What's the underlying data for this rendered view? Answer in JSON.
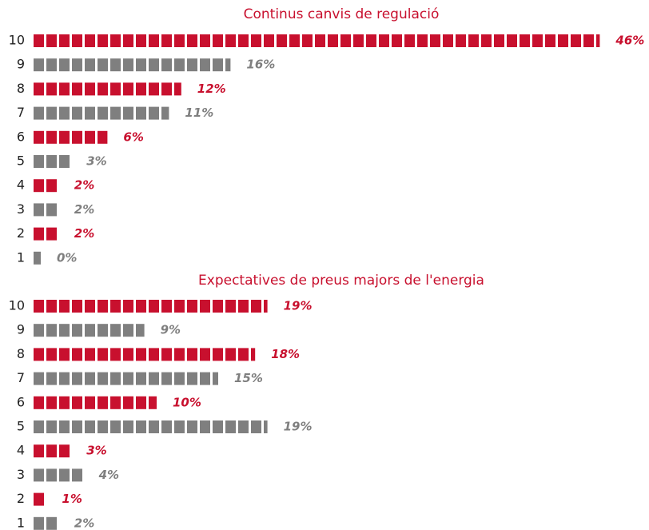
{
  "chart_data": [
    {
      "type": "bar",
      "title": "Continus canvis de regulació",
      "categories": [
        "10",
        "9",
        "8",
        "7",
        "6",
        "5",
        "4",
        "3",
        "2",
        "1"
      ],
      "values": [
        46,
        16,
        12,
        11,
        6,
        3,
        2,
        2,
        2,
        0
      ],
      "value_labels": [
        "46%",
        "16%",
        "12%",
        "11%",
        "6%",
        "3%",
        "2%",
        "2%",
        "2%",
        "0%"
      ],
      "colors": [
        "#c8102e",
        "#7f7f7f",
        "#c8102e",
        "#7f7f7f",
        "#c8102e",
        "#7f7f7f",
        "#c8102e",
        "#7f7f7f",
        "#c8102e",
        "#7f7f7f"
      ]
    },
    {
      "type": "bar",
      "title": "Expectatives de preus majors de l'energia",
      "categories": [
        "10",
        "9",
        "8",
        "7",
        "6",
        "5",
        "4",
        "3",
        "2",
        "1"
      ],
      "values": [
        19,
        9,
        18,
        15,
        10,
        19,
        3,
        4,
        1,
        2
      ],
      "value_labels": [
        "19%",
        "9%",
        "18%",
        "15%",
        "10%",
        "19%",
        "3%",
        "4%",
        "1%",
        "2%"
      ],
      "colors": [
        "#c8102e",
        "#7f7f7f",
        "#c8102e",
        "#7f7f7f",
        "#c8102e",
        "#7f7f7f",
        "#c8102e",
        "#7f7f7f",
        "#c8102e",
        "#7f7f7f"
      ]
    }
  ]
}
